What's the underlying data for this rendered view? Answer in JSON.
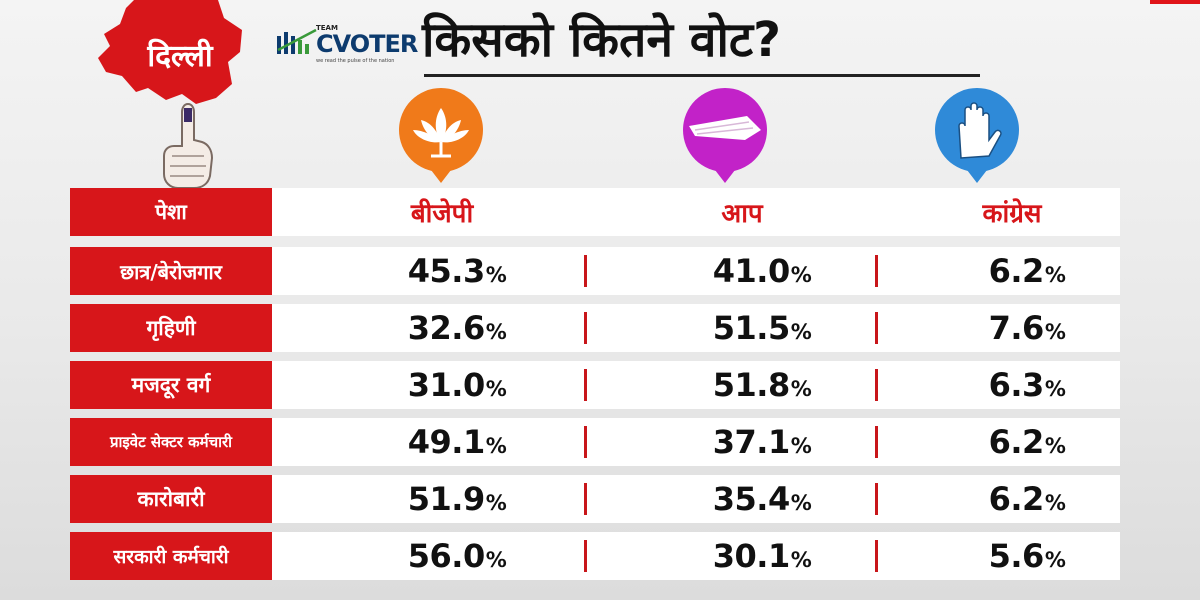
{
  "region_label": "दिल्ली",
  "logo": {
    "team": "TEAM",
    "name": "CVOTER",
    "tagline": "we read the pulse of the nation"
  },
  "title": "किसको कितने वोट?",
  "icons": [
    "bjp-lotus-icon",
    "aap-broom-icon",
    "congress-hand-icon"
  ],
  "colors": {
    "bjp": "#f07a1a",
    "aap": "#c222c8",
    "congress": "#2f8ad8",
    "accent": "#d7161a"
  },
  "table": {
    "header_label": "पेशा",
    "columns": [
      "बीजेपी",
      "आप",
      "कांग्रेस"
    ],
    "rows": [
      {
        "label": "छात्र/बेरोजगार",
        "values": [
          "45.3",
          "41.0",
          "6.2"
        ]
      },
      {
        "label": "गृहिणी",
        "values": [
          "32.6",
          "51.5",
          "7.6"
        ]
      },
      {
        "label": "मजदूर वर्ग",
        "values": [
          "31.0",
          "51.8",
          "6.3"
        ]
      },
      {
        "label": "प्राइवेट सेक्टर कर्मचारी",
        "values": [
          "49.1",
          "37.1",
          "6.2"
        ]
      },
      {
        "label": "कारोबारी",
        "values": [
          "51.9",
          "35.4",
          "6.2"
        ]
      },
      {
        "label": "सरकारी कर्मचारी",
        "values": [
          "56.0",
          "30.1",
          "5.6"
        ]
      }
    ],
    "unit": "%"
  },
  "chart_data": {
    "type": "table",
    "title": "किसको कितने वोट?",
    "row_header": "पेशा",
    "categories": [
      "छात्र/बेरोजगार",
      "गृहिणी",
      "मजदूर वर्ग",
      "प्राइवेट सेक्टर कर्मचारी",
      "कारोबारी",
      "सरकारी कर्मचारी"
    ],
    "series": [
      {
        "name": "बीजेपी",
        "values": [
          45.3,
          32.6,
          31.0,
          49.1,
          51.9,
          56.0
        ]
      },
      {
        "name": "आप",
        "values": [
          41.0,
          51.5,
          51.8,
          37.1,
          35.4,
          30.1
        ]
      },
      {
        "name": "कांग्रेस",
        "values": [
          6.2,
          7.6,
          6.3,
          6.2,
          6.2,
          5.6
        ]
      }
    ],
    "unit": "%"
  }
}
